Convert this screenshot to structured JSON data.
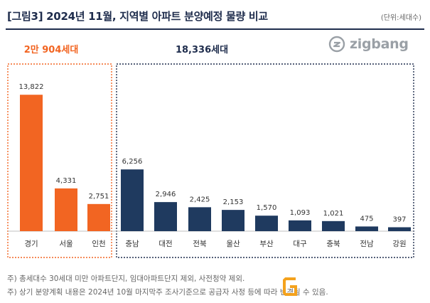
{
  "header": {
    "title": "[그림3] 2024년 11월, 지역별 아파트 분양예정 물량 비교",
    "unit": "(단위:세대수)"
  },
  "logo": {
    "text": "zigbang",
    "icon": "zigbang-logo-icon"
  },
  "groups": {
    "capital": {
      "total_label": "2만 904세대",
      "color": "#f26522",
      "border_color": "#f26522"
    },
    "provincial": {
      "total_label": "18,336세대",
      "color": "#1f3a5f",
      "border_color": "#1f2d4d"
    }
  },
  "chart_data": {
    "type": "bar",
    "title": "[그림3] 2024년 11월, 지역별 아파트 분양예정 물량 비교",
    "ylabel": "(단위:세대수)",
    "ylim": [
      0,
      16000
    ],
    "grid": false,
    "categories": [
      "경기",
      "서울",
      "인천",
      "충남",
      "대전",
      "전북",
      "울산",
      "부산",
      "대구",
      "충북",
      "전남",
      "강원"
    ],
    "series": [
      {
        "values": [
          13822,
          4331,
          2751,
          6256,
          2946,
          2425,
          2153,
          1570,
          1093,
          1021,
          475,
          397
        ],
        "labels": [
          "13,822",
          "4,331",
          "2,751",
          "6,256",
          "2,946",
          "2,425",
          "2,153",
          "1,570",
          "1,093",
          "1,021",
          "475",
          "397"
        ],
        "group": [
          "capital",
          "capital",
          "capital",
          "provincial",
          "provincial",
          "provincial",
          "provincial",
          "provincial",
          "provincial",
          "provincial",
          "provincial",
          "provincial"
        ]
      }
    ]
  },
  "footnotes": [
    "주) 총세대수 30세대 미만 아파트단지, 임대아파트단지 제외, 사전청약 제외.",
    "주) 상기 분양계획 내용은 2024년 10월 마지막주 조사기준으로 공급자 사정 등에 따라 변경될 수 있음."
  ],
  "watermark": {
    "icon": "g-watermark-icon",
    "color": "#f4a21d"
  }
}
